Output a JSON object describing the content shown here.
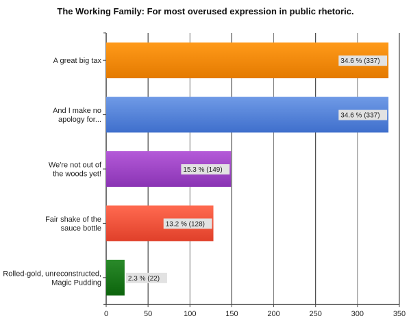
{
  "chart_data": {
    "type": "bar",
    "orientation": "horizontal",
    "title": "The Working Family: For most overused expression in public rhetoric.",
    "xlabel": "",
    "ylabel": "",
    "xlim": [
      0,
      350
    ],
    "xticks": [
      0,
      50,
      100,
      150,
      200,
      250,
      300,
      350
    ],
    "grid": true,
    "categories": [
      [
        "A great big tax"
      ],
      [
        "And I make no",
        "apology for..."
      ],
      [
        "We're not out of",
        "the woods yet!"
      ],
      [
        "Fair shake of the",
        "sauce bottle"
      ],
      [
        "Rolled-gold, unreconstructed,",
        "Magic Pudding"
      ]
    ],
    "values": [
      337,
      337,
      149,
      128,
      22
    ],
    "percents": [
      34.6,
      34.6,
      15.3,
      13.2,
      2.3
    ],
    "data_labels": [
      "34.6 % (337)",
      "34.6 % (337)",
      "15.3 % (149)",
      "13.2 % (128)",
      "2.3 % (22)"
    ],
    "colors": [
      [
        "#ff9a1a",
        "#e47a00"
      ],
      [
        "#6f9ae6",
        "#3f6fcc"
      ],
      [
        "#b45ad8",
        "#8a34b4"
      ],
      [
        "#ff6a50",
        "#e0402a"
      ],
      [
        "#2a8a2a",
        "#0c640c"
      ]
    ]
  }
}
